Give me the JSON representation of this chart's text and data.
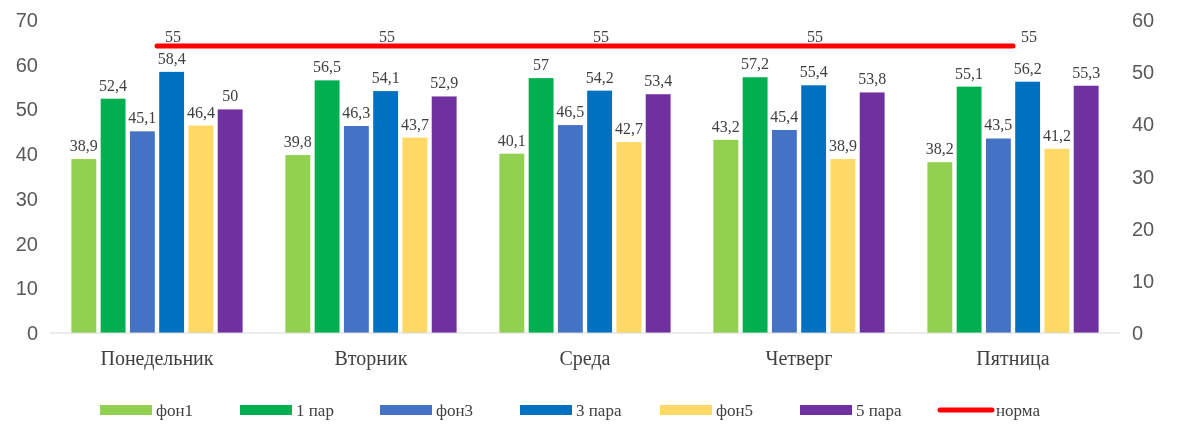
{
  "chart_data": {
    "type": "bar",
    "categories": [
      "Понедельник",
      "Вторник",
      "Среда",
      "Четверг",
      "Пятница"
    ],
    "series": [
      {
        "name": "фон1",
        "color": "#92d050",
        "values": [
          38.9,
          39.8,
          40.1,
          43.2,
          38.2
        ],
        "value_labels": [
          "38,9",
          "39,8",
          "40,1",
          "43,2",
          "38,2"
        ]
      },
      {
        "name": "1 пар",
        "color": "#00b050",
        "values": [
          52.4,
          56.5,
          57,
          57.2,
          55.1
        ],
        "value_labels": [
          "52,4",
          "56,5",
          "57",
          "57,2",
          "55,1"
        ]
      },
      {
        "name": "фон3",
        "color": "#4472c4",
        "values": [
          45.1,
          46.3,
          46.5,
          45.4,
          43.5
        ],
        "value_labels": [
          "45,1",
          "46,3",
          "46,5",
          "45,4",
          "43,5"
        ]
      },
      {
        "name": "3 пара",
        "color": "#0070c0",
        "values": [
          58.4,
          54.1,
          54.2,
          55.4,
          56.2
        ],
        "value_labels": [
          "58,4",
          "54,1",
          "54,2",
          "55,4",
          "56,2"
        ]
      },
      {
        "name": "фон5",
        "color": "#ffd966",
        "values": [
          46.4,
          43.7,
          42.7,
          38.9,
          41.2
        ],
        "value_labels": [
          "46,4",
          "43,7",
          "42,7",
          "38,9",
          "41,2"
        ]
      },
      {
        "name": "5 пара",
        "color": "#7030a0",
        "values": [
          50,
          52.9,
          53.4,
          53.8,
          55.3
        ],
        "value_labels": [
          "50",
          "52,9",
          "53,4",
          "53,8",
          "55,3"
        ]
      },
      {
        "name": "норма",
        "type": "line",
        "axis": "y2",
        "color": "#ff0000",
        "values": [
          55,
          55,
          55,
          55,
          55
        ],
        "value_labels": [
          "55",
          "55",
          "55",
          "55",
          "55"
        ]
      }
    ],
    "ylim": [
      0,
      70
    ],
    "yticks": [
      0,
      10,
      20,
      30,
      40,
      50,
      60,
      70
    ],
    "y2lim": [
      0,
      60
    ],
    "y2ticks": [
      0,
      10,
      20,
      30,
      40,
      50,
      60
    ],
    "legend": "bottom",
    "grid": false
  }
}
